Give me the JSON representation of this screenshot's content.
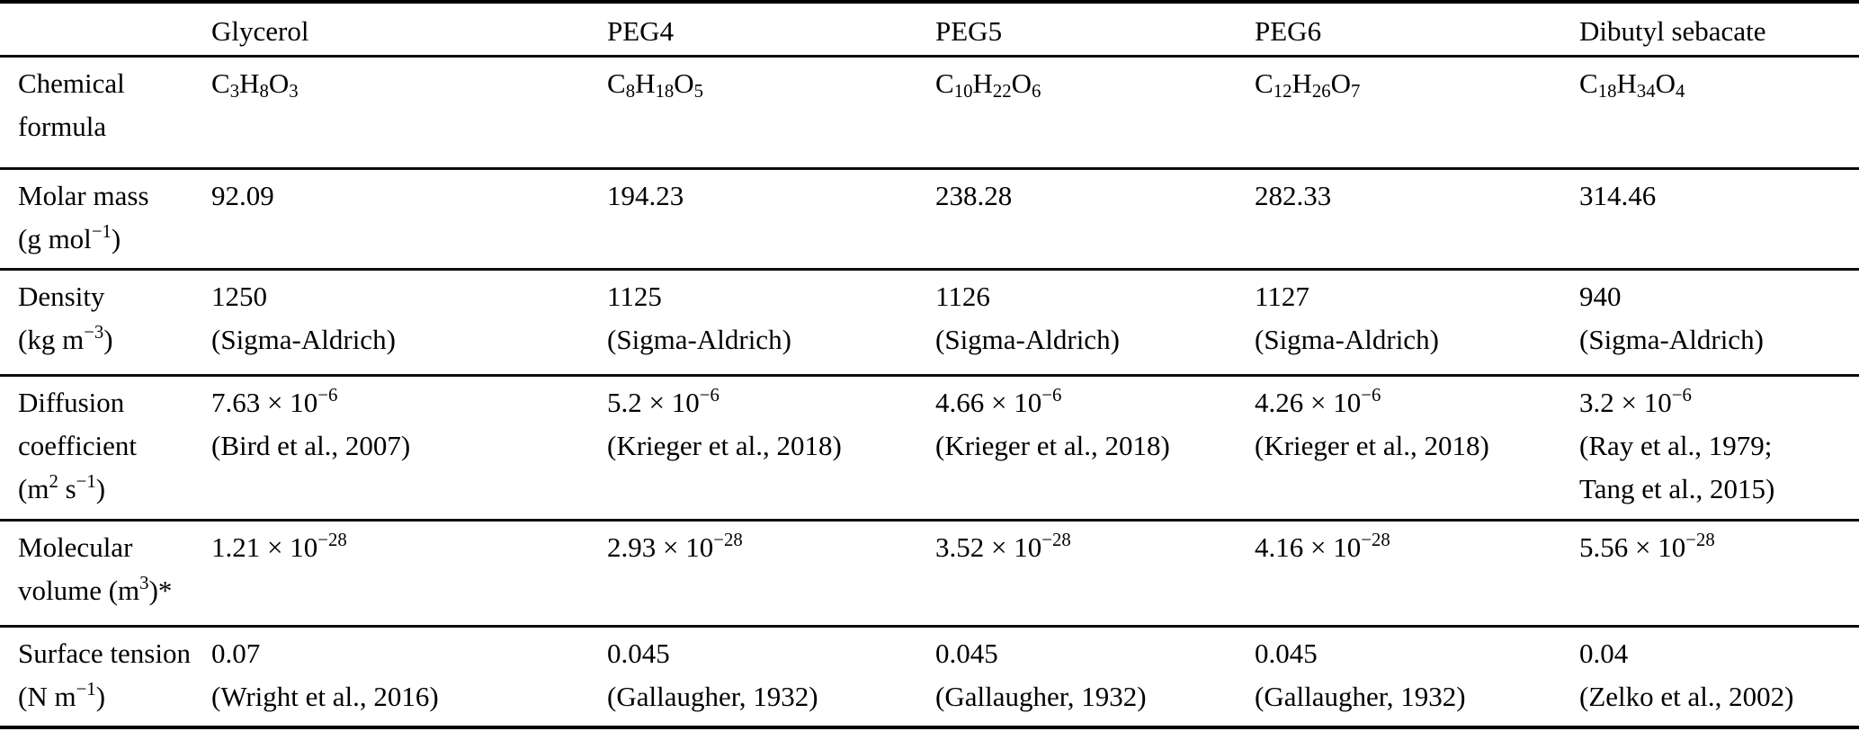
{
  "colors": {
    "text": "#000000",
    "background": "#ffffff",
    "rule": "#000000"
  },
  "table": {
    "columns": [
      "",
      "Glycerol",
      "PEG4",
      "PEG5",
      "PEG6",
      "Dibutyl sebacate"
    ],
    "rows": [
      {
        "label": "Chemical\nformula",
        "values": [
          "C_{3}H_{8}O_{3}",
          "C_{8}H_{18}O_{5}",
          "C_{10}H_{22}O_{6}",
          "C_{12}H_{26}O_{7}",
          "C_{18}H_{34}O_{4}"
        ]
      },
      {
        "label": "Molar mass\n(g mol^{−1})",
        "values": [
          "92.09",
          "194.23",
          "238.28",
          "282.33",
          "314.46"
        ]
      },
      {
        "label": "Density\n(kg m^{−3})",
        "values": [
          "1250\n(Sigma-Aldrich)",
          "1125\n(Sigma-Aldrich)",
          "1126\n(Sigma-Aldrich)",
          "1127\n(Sigma-Aldrich)",
          "940\n(Sigma-Aldrich)"
        ]
      },
      {
        "label": "Diffusion\ncoefficient\n(m^{2} s^{−1})",
        "values": [
          "7.63 × 10^{−6}\n(Bird et al., 2007)",
          "5.2 × 10^{−6}\n(Krieger et al., 2018)",
          "4.66 ×  10^{−6}\n(Krieger et al., 2018)",
          "4.26 × 10^{−6}\n(Krieger et al., 2018)",
          "3.2 × 10^{−6}\n(Ray et al., 1979;\nTang et al., 2015)"
        ]
      },
      {
        "label": "Molecular\nvolume (m^{3})*",
        "values": [
          "1.21 × 10^{−28}",
          "2.93 ×  10^{−28}",
          "3.52 × 10^{−28}",
          "4.16 × 10^{−28}",
          "5.56 × 10^{−28}"
        ]
      },
      {
        "label": "Surface tension\n(N m^{−1})",
        "values": [
          "0.07\n(Wright et al., 2016)",
          "0.045\n(Gallaugher, 1932)",
          "0.045\n(Gallaugher, 1932)",
          "0.045\n(Gallaugher, 1932)",
          "0.04\n(Zelko et al., 2002)"
        ]
      }
    ]
  }
}
